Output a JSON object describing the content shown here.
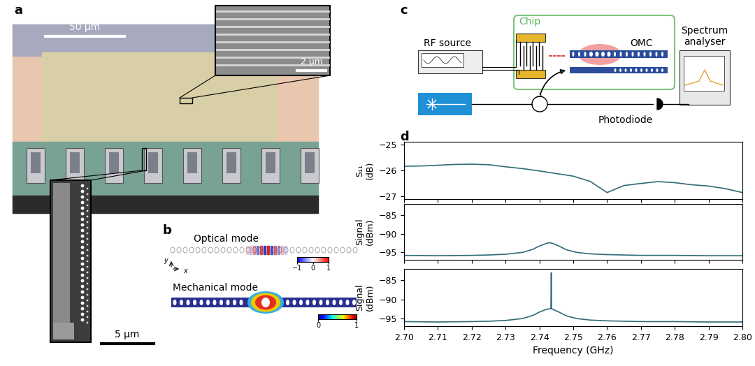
{
  "panels": {
    "a": {
      "label": "a",
      "scale_bars": [
        "50 µm",
        "2 µm",
        "5 µm"
      ]
    },
    "b": {
      "label": "b",
      "optical_mode": {
        "title": "Optical mode",
        "colorbar": {
          "range": [
            -1,
            1
          ],
          "ticks": [
            {
              "value": -1,
              "label": "−1"
            },
            0,
            1
          ]
        }
      },
      "mechanical_mode": {
        "title": "Mechanical mode",
        "colorbar": {
          "range": [
            0,
            1
          ],
          "ticks": [
            0,
            1
          ]
        }
      },
      "axes": {
        "y": "y",
        "x": "x"
      }
    },
    "c": {
      "label": "c",
      "chip": "Chip",
      "rf_source": "RF source",
      "omc": "OMC",
      "spectrum_analyser": "Spectrum\nanalyser",
      "photodiode": "Photodiode"
    },
    "d": {
      "label": "d"
    }
  },
  "chart_data": [
    {
      "type": "line",
      "ylabel": "S₁₁\n(dB)",
      "color": "#2e6b78",
      "tick_labels": "y",
      "x": [
        2.7,
        2.705,
        2.71,
        2.715,
        2.72,
        2.725,
        2.73,
        2.735,
        2.74,
        2.745,
        2.75,
        2.755,
        2.76,
        2.765,
        2.77,
        2.775,
        2.78,
        2.785,
        2.79,
        2.795,
        2.8
      ],
      "values": [
        -25.84,
        -25.83,
        -25.8,
        -25.77,
        -25.76,
        -25.78,
        -25.86,
        -25.93,
        -26.02,
        -26.12,
        -26.22,
        -26.42,
        -26.85,
        -26.58,
        -26.5,
        -26.43,
        -26.47,
        -26.55,
        -26.6,
        -26.7,
        -26.85
      ],
      "xlim": [
        2.7,
        2.8
      ],
      "xticks": [
        {
          "value": 2.7,
          "label": "2.70"
        },
        {
          "value": 2.71,
          "label": "2.71"
        },
        {
          "value": 2.72,
          "label": "2.72"
        },
        {
          "value": 2.73,
          "label": "2.73"
        },
        {
          "value": 2.74,
          "label": "2.74"
        },
        {
          "value": 2.75,
          "label": "2.75"
        },
        {
          "value": 2.76,
          "label": "2.76"
        },
        {
          "value": 2.77,
          "label": "2.77"
        },
        {
          "value": 2.78,
          "label": "2.78"
        },
        {
          "value": 2.79,
          "label": "2.79"
        },
        {
          "value": 2.8,
          "label": "2.80"
        }
      ],
      "ylim": [
        -27.1,
        -24.9
      ],
      "yticks": [
        {
          "value": -27,
          "label": "−27"
        },
        {
          "value": -26,
          "label": "−26"
        },
        {
          "value": -25,
          "label": "−25"
        }
      ]
    },
    {
      "type": "line",
      "ylabel": "Signal\n(dBm)",
      "color": "#2e6b78",
      "tick_labels": "y",
      "x": [
        2.7,
        2.71,
        2.72,
        2.725,
        2.73,
        2.735,
        2.738,
        2.74,
        2.742,
        2.743,
        2.744,
        2.746,
        2.748,
        2.751,
        2.755,
        2.76,
        2.77,
        2.78,
        2.79,
        2.8
      ],
      "values": [
        -95.8,
        -95.9,
        -95.8,
        -95.7,
        -95.5,
        -95.0,
        -94.2,
        -93.3,
        -92.6,
        -92.4,
        -92.6,
        -93.4,
        -94.3,
        -95.0,
        -95.4,
        -95.6,
        -95.8,
        -95.8,
        -95.9,
        -95.9
      ],
      "xlim": [
        2.7,
        2.8
      ],
      "xticks": [
        {
          "value": 2.7,
          "label": "2.70"
        },
        {
          "value": 2.71,
          "label": "2.71"
        },
        {
          "value": 2.72,
          "label": "2.72"
        },
        {
          "value": 2.73,
          "label": "2.73"
        },
        {
          "value": 2.74,
          "label": "2.74"
        },
        {
          "value": 2.75,
          "label": "2.75"
        },
        {
          "value": 2.76,
          "label": "2.76"
        },
        {
          "value": 2.77,
          "label": "2.77"
        },
        {
          "value": 2.78,
          "label": "2.78"
        },
        {
          "value": 2.79,
          "label": "2.79"
        },
        {
          "value": 2.8,
          "label": "2.80"
        }
      ],
      "ylim": [
        -97,
        -82
      ],
      "yticks": [
        {
          "value": -95,
          "label": "−95"
        },
        {
          "value": -90,
          "label": "−90"
        },
        {
          "value": -85,
          "label": "−85"
        }
      ]
    },
    {
      "type": "line",
      "ylabel": "Signal\n(dBm)",
      "xlabel": "Frequency (GHz)",
      "color": "#2e6b78",
      "x": [
        2.7,
        2.71,
        2.72,
        2.725,
        2.73,
        2.735,
        2.738,
        2.74,
        2.742,
        2.7434,
        2.7435,
        2.7436,
        2.744,
        2.746,
        2.748,
        2.751,
        2.755,
        2.76,
        2.77,
        2.78,
        2.79,
        2.8
      ],
      "values": [
        -95.8,
        -95.9,
        -95.8,
        -95.7,
        -95.5,
        -95.0,
        -94.2,
        -93.3,
        -92.6,
        -92.4,
        -83.0,
        -92.4,
        -92.6,
        -93.4,
        -94.3,
        -95.0,
        -95.4,
        -95.6,
        -95.8,
        -95.8,
        -95.9,
        -95.9
      ],
      "xlim": [
        2.7,
        2.8
      ],
      "xticks": [
        {
          "value": 2.7,
          "label": "2.70"
        },
        {
          "value": 2.71,
          "label": "2.71"
        },
        {
          "value": 2.72,
          "label": "2.72"
        },
        {
          "value": 2.73,
          "label": "2.73"
        },
        {
          "value": 2.74,
          "label": "2.74"
        },
        {
          "value": 2.75,
          "label": "2.75"
        },
        {
          "value": 2.76,
          "label": "2.76"
        },
        {
          "value": 2.77,
          "label": "2.77"
        },
        {
          "value": 2.78,
          "label": "2.78"
        },
        {
          "value": 2.79,
          "label": "2.79"
        },
        {
          "value": 2.8,
          "label": "2.80"
        }
      ],
      "ylim": [
        -97,
        -82
      ],
      "yticks": [
        {
          "value": -95,
          "label": "−95"
        },
        {
          "value": -90,
          "label": "−90"
        },
        {
          "value": -85,
          "label": "−85"
        }
      ]
    }
  ]
}
